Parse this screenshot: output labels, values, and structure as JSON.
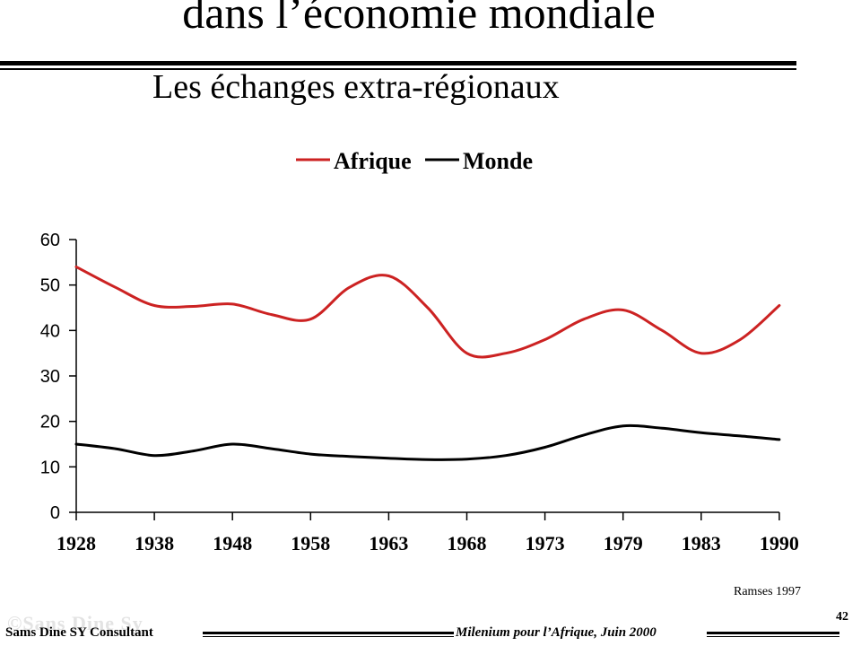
{
  "slide": {
    "title": "dans l’économie mondiale",
    "subtitle": "Les échanges extra-régionaux",
    "source": "Ramses 1997",
    "watermark": "©Sans Dine Sy",
    "footer_left": "Sams Dine SY Consultant",
    "footer_right": "Milenium pour l’Afrique, Juin 2000",
    "page_number": "42"
  },
  "chart_data": {
    "type": "line",
    "categories": [
      "1928",
      "1938",
      "1948",
      "1958",
      "1963",
      "1968",
      "1973",
      "1979",
      "1983",
      "1990"
    ],
    "series": [
      {
        "name": "Afrique",
        "color": "#cc2222",
        "points": [
          [
            0,
            54
          ],
          [
            0.5,
            49.5
          ],
          [
            1,
            45.5
          ],
          [
            1.5,
            45.3
          ],
          [
            2,
            45.8
          ],
          [
            2.5,
            43.5
          ],
          [
            3,
            42.5
          ],
          [
            3.5,
            49.5
          ],
          [
            4,
            52
          ],
          [
            4.5,
            45
          ],
          [
            5,
            35
          ],
          [
            5.5,
            35
          ],
          [
            6,
            38
          ],
          [
            6.5,
            42.5
          ],
          [
            7,
            44.5
          ],
          [
            7.5,
            40
          ],
          [
            8,
            35
          ],
          [
            8.5,
            38
          ],
          [
            9,
            45.5
          ]
        ]
      },
      {
        "name": "Monde",
        "color": "#000000",
        "points": [
          [
            0,
            15
          ],
          [
            0.5,
            14
          ],
          [
            1,
            12.5
          ],
          [
            1.5,
            13.5
          ],
          [
            2,
            15
          ],
          [
            2.5,
            14
          ],
          [
            3,
            12.8
          ],
          [
            3.5,
            12.3
          ],
          [
            4,
            11.9
          ],
          [
            4.5,
            11.6
          ],
          [
            5,
            11.7
          ],
          [
            5.5,
            12.5
          ],
          [
            6,
            14.3
          ],
          [
            6.5,
            17
          ],
          [
            7,
            19
          ],
          [
            7.5,
            18.5
          ],
          [
            8,
            17.5
          ],
          [
            8.5,
            16.8
          ],
          [
            9,
            16
          ]
        ]
      }
    ],
    "y_ticks": [
      "0",
      "10",
      "20",
      "30",
      "40",
      "50",
      "60"
    ],
    "ylim": [
      0,
      60
    ],
    "grid": false,
    "legend_position": "top-center"
  }
}
